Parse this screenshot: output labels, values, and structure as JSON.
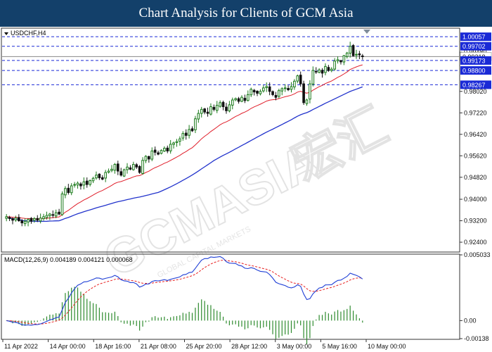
{
  "header": {
    "title": "Chart Analysis for Clients of GCM Asia"
  },
  "watermark": {
    "text": "GCMASIA",
    "cjk": "宏汇",
    "sub": "GLOBAL CAPITAL MARKETS"
  },
  "colors": {
    "banner": "#13406a",
    "bull": "#1a7a1a",
    "bear": "#111111",
    "ma_fast": "#e01f2b",
    "ma_slow": "#2233cc",
    "level": "#1a2ad6",
    "macd_line": "#1f3fd6",
    "macd_signal": "#e82020",
    "histogram": "#2e8b2e"
  },
  "chart_data": [
    {
      "type": "candlestick",
      "symbol_label": "USDCHF,H4",
      "ylim": [
        0.9206,
        1.0035
      ],
      "y_ticks": [
        "0.99480",
        "0.98020",
        "0.97220",
        "0.96420",
        "0.95620",
        "0.94820",
        "0.94000",
        "0.93200",
        "0.92400"
      ],
      "x_ticks": [
        "11 Apr 2022",
        "14 Apr 00:00",
        "18 Apr 16:00",
        "21 Apr 08:00",
        "25 Apr 20:00",
        "28 Apr 12:00",
        "3 May 00:00",
        "5 May 16:00",
        "10 May 00:00"
      ],
      "current_price": "0.99318",
      "levels": [
        {
          "value": 1.00057,
          "label": "1.00057"
        },
        {
          "value": 0.99702,
          "label": "0.99702"
        },
        {
          "value": 0.99173,
          "label": "0.99173"
        },
        {
          "value": 0.988,
          "label": "0.98800"
        },
        {
          "value": 0.98267,
          "label": "0.98267"
        }
      ],
      "series": [
        {
          "name": "price",
          "close_values": [
            0.9335,
            0.9328,
            0.9322,
            0.933,
            0.932,
            0.9312,
            0.9318,
            0.9325,
            0.9318,
            0.9328,
            0.9322,
            0.933,
            0.9335,
            0.934,
            0.9345,
            0.934,
            0.935,
            0.9345,
            0.942,
            0.944,
            0.9425,
            0.945,
            0.9455,
            0.946,
            0.945,
            0.9465,
            0.9455,
            0.947,
            0.9478,
            0.949,
            0.948,
            0.9475,
            0.95,
            0.9505,
            0.9512,
            0.953,
            0.9505,
            0.949,
            0.951,
            0.952,
            0.9512,
            0.953,
            0.952,
            0.95,
            0.9545,
            0.956,
            0.955,
            0.958,
            0.9575,
            0.9568,
            0.9582,
            0.959,
            0.958,
            0.9605,
            0.961,
            0.9615,
            0.9625,
            0.9645,
            0.9638,
            0.966,
            0.9655,
            0.97,
            0.972,
            0.9735,
            0.9725,
            0.972,
            0.9745,
            0.9735,
            0.975,
            0.976,
            0.9745,
            0.973,
            0.9752,
            0.977,
            0.9775,
            0.9765,
            0.978,
            0.9768,
            0.979,
            0.981,
            0.98,
            0.9795,
            0.9802,
            0.9815,
            0.982,
            0.9802,
            0.979,
            0.978,
            0.9805,
            0.9812,
            0.9815,
            0.9808,
            0.982,
            0.984,
            0.986,
            0.983,
            0.976,
            0.977,
            0.983,
            0.988,
            0.9875,
            0.9882,
            0.987,
            0.9895,
            0.988,
            0.9885,
            0.9915,
            0.992,
            0.9912,
            0.9935,
            0.9945,
            0.997,
            0.9935,
            0.994,
            0.9938,
            0.9932
          ]
        },
        {
          "name": "ma_fast"
        },
        {
          "name": "ma_slow"
        }
      ]
    },
    {
      "type": "line",
      "title": "MACD(12,26,9) 0.004189 0.004121 0.000068",
      "ylim": [
        -0.00138,
        0.005033
      ],
      "y_ticks": [
        "0.005033",
        "0.00",
        "-0.00138"
      ],
      "series": [
        {
          "name": "macd"
        },
        {
          "name": "signal"
        },
        {
          "name": "histogram"
        }
      ]
    }
  ]
}
